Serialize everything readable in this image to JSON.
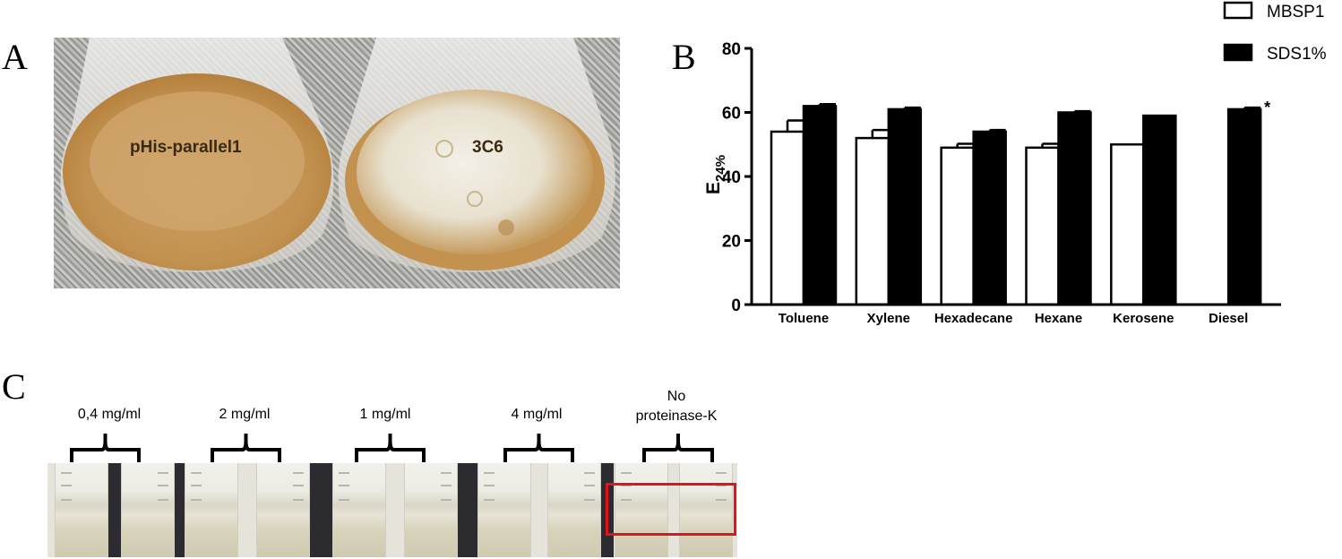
{
  "panels": {
    "a": {
      "letter": "A",
      "flask_labels": [
        "pHis-parallel1",
        "3C6"
      ]
    },
    "b": {
      "letter": "B"
    },
    "c": {
      "letter": "C",
      "sample_labels": [
        "0,4 mg/ml",
        "2 mg/ml",
        "1 mg/ml",
        "4 mg/ml"
      ],
      "control_label_line1": "No",
      "control_label_line2": "proteinase-K"
    }
  },
  "colors": {
    "highlight": "#e0141b",
    "broth": "#c79a55",
    "foam": "#ece7da"
  },
  "chart_data": {
    "type": "bar",
    "categories": [
      "Toluene",
      "Xylene",
      "Hexadecane",
      "Hexane",
      "Kerosene",
      "Diesel"
    ],
    "series": [
      {
        "name": "MBSP1",
        "values": [
          54,
          52,
          49,
          49,
          50,
          null
        ],
        "errors": [
          3.5,
          2.5,
          1.2,
          1.2,
          0,
          null
        ],
        "fill": "#ffffff"
      },
      {
        "name": "SDS1%",
        "values": [
          62,
          61,
          54,
          60,
          59,
          61
        ],
        "errors": [
          0.6,
          0.5,
          0.5,
          0.4,
          0,
          0.5
        ],
        "fill": "#000000"
      }
    ],
    "ylabel_main": "E",
    "ylabel_sub": "24%",
    "ylim": [
      0,
      80
    ],
    "yticks": [
      0,
      20,
      40,
      60,
      80
    ],
    "annotation": "*",
    "annotation_category": "Diesel",
    "grid": false,
    "legend": "top-right"
  }
}
